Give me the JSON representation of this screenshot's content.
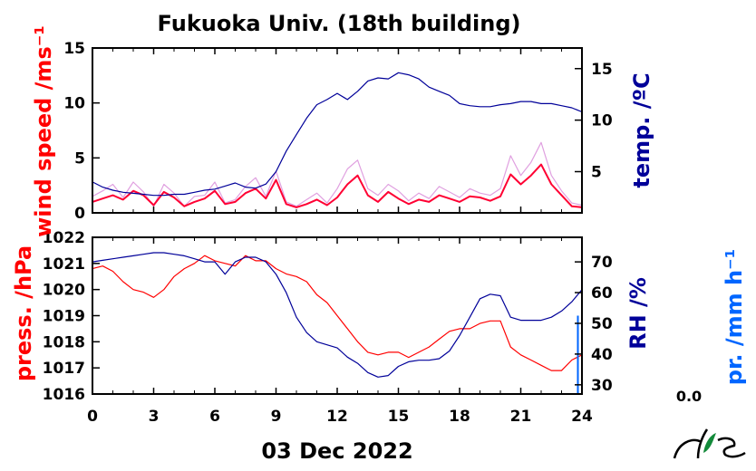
{
  "chart_data": [
    {
      "panel": "upper",
      "type": "line",
      "title": "Fukuoka Univ. (18th building)",
      "xlabel": "03 Dec 2022",
      "xlim": [
        0,
        24
      ],
      "xticks": [
        "0",
        "3",
        "6",
        "9",
        "12",
        "15",
        "18",
        "21",
        "24"
      ],
      "left_axis": {
        "label": "wind speed /ms⁻¹",
        "color": "#ff0000",
        "ylim": [
          0,
          15
        ],
        "ticks": [
          "0",
          "5",
          "10",
          "15"
        ]
      },
      "right_axis": {
        "label": "temp. /ºC",
        "color": "#000099",
        "ylim": [
          1,
          17
        ],
        "ticks": [
          "5",
          "10",
          "15"
        ]
      },
      "series": [
        {
          "axis": "left",
          "style": "thin-raw",
          "color": "#e0a0e0",
          "x": [
            0,
            0.5,
            1,
            1.5,
            2,
            2.5,
            3,
            3.5,
            4,
            4.5,
            5,
            5.5,
            6,
            6.5,
            7,
            7.5,
            8,
            8.5,
            9,
            9.5,
            10,
            10.5,
            11,
            11.5,
            12,
            12.5,
            13,
            13.5,
            14,
            14.5,
            15,
            15.5,
            16,
            16.5,
            17,
            17.5,
            18,
            18.5,
            19,
            19.5,
            20,
            20.5,
            21,
            21.5,
            22,
            22.5,
            23,
            23.5,
            24
          ],
          "values": [
            1.5,
            2.0,
            2.6,
            1.4,
            2.8,
            1.9,
            0.6,
            2.6,
            1.8,
            0.6,
            1.5,
            1.6,
            2.8,
            0.9,
            1.2,
            2.4,
            3.2,
            1.5,
            3.8,
            1.0,
            0.6,
            1.2,
            1.8,
            0.9,
            2.2,
            4.0,
            4.8,
            2.2,
            1.6,
            2.6,
            2.0,
            1.1,
            1.8,
            1.3,
            2.4,
            1.9,
            1.4,
            2.2,
            1.8,
            1.6,
            2.2,
            5.2,
            3.4,
            4.6,
            6.4,
            3.4,
            2.0,
            0.9,
            0.7
          ]
        },
        {
          "axis": "left",
          "style": "smoothed",
          "color": "#ff0033",
          "x": [
            0,
            0.5,
            1,
            1.5,
            2,
            2.5,
            3,
            3.5,
            4,
            4.5,
            5,
            5.5,
            6,
            6.5,
            7,
            7.5,
            8,
            8.5,
            9,
            9.5,
            10,
            10.5,
            11,
            11.5,
            12,
            12.5,
            13,
            13.5,
            14,
            14.5,
            15,
            15.5,
            16,
            16.5,
            17,
            17.5,
            18,
            18.5,
            19,
            19.5,
            20,
            20.5,
            21,
            21.5,
            22,
            22.5,
            23,
            23.5,
            24
          ],
          "values": [
            1.0,
            1.3,
            1.6,
            1.2,
            2.0,
            1.6,
            0.7,
            1.9,
            1.4,
            0.6,
            1.0,
            1.3,
            2.0,
            0.8,
            1.0,
            1.8,
            2.2,
            1.3,
            3.0,
            0.8,
            0.5,
            0.8,
            1.2,
            0.7,
            1.4,
            2.6,
            3.4,
            1.6,
            1.0,
            1.9,
            1.3,
            0.8,
            1.2,
            1.0,
            1.6,
            1.3,
            1.0,
            1.5,
            1.4,
            1.1,
            1.5,
            3.5,
            2.6,
            3.4,
            4.4,
            2.6,
            1.6,
            0.6,
            0.5
          ]
        },
        {
          "axis": "right",
          "style": "line",
          "color": "#000099",
          "x": [
            0,
            0.5,
            1,
            1.5,
            2,
            2.5,
            3,
            3.5,
            4,
            4.5,
            5,
            5.5,
            6,
            6.5,
            7,
            7.5,
            8,
            8.5,
            9,
            9.5,
            10,
            10.5,
            11,
            11.5,
            12,
            12.5,
            13,
            13.5,
            14,
            14.5,
            15,
            15.5,
            16,
            16.5,
            17,
            17.5,
            18,
            18.5,
            19,
            19.5,
            20,
            20.5,
            21,
            21.5,
            22,
            22.5,
            23,
            23.5,
            24
          ],
          "values": [
            4.0,
            3.5,
            3.2,
            3.0,
            2.9,
            2.8,
            2.7,
            2.7,
            2.8,
            2.8,
            3.0,
            3.2,
            3.3,
            3.6,
            3.9,
            3.5,
            3.4,
            3.8,
            5.0,
            7.0,
            8.6,
            10.2,
            11.5,
            12.0,
            12.6,
            12.0,
            12.8,
            13.8,
            14.1,
            14.0,
            14.6,
            14.4,
            14.0,
            13.2,
            12.8,
            12.4,
            11.6,
            11.4,
            11.3,
            11.3,
            11.5,
            11.6,
            11.8,
            11.8,
            11.6,
            11.6,
            11.4,
            11.2,
            10.8
          ]
        }
      ]
    },
    {
      "panel": "lower",
      "type": "line",
      "xlim": [
        0,
        24
      ],
      "xticks": [
        "0",
        "3",
        "6",
        "9",
        "12",
        "15",
        "18",
        "21",
        "24"
      ],
      "left_axis": {
        "label": "press. /hPa",
        "color": "#ff0000",
        "ylim": [
          1016,
          1022
        ],
        "ticks": [
          "1016",
          "1017",
          "1018",
          "1019",
          "1020",
          "1021",
          "1022"
        ]
      },
      "right_axis": {
        "label": "RH /%",
        "color": "#000099",
        "ylim": [
          27,
          78
        ],
        "ticks": [
          "30",
          "40",
          "50",
          "60",
          "70"
        ]
      },
      "series": [
        {
          "axis": "left",
          "style": "line",
          "color": "#ff0000",
          "x": [
            0,
            0.5,
            1,
            1.5,
            2,
            2.5,
            3,
            3.5,
            4,
            4.5,
            5,
            5.5,
            6,
            6.5,
            7,
            7.5,
            8,
            8.5,
            9,
            9.5,
            10,
            10.5,
            11,
            11.5,
            12,
            12.5,
            13,
            13.5,
            14,
            14.5,
            15,
            15.5,
            16,
            16.5,
            17,
            17.5,
            18,
            18.5,
            19,
            19.5,
            20,
            20.5,
            21,
            21.5,
            22,
            22.5,
            23,
            23.5,
            24
          ],
          "values": [
            1020.8,
            1020.9,
            1020.7,
            1020.3,
            1020.0,
            1019.9,
            1019.7,
            1020.0,
            1020.5,
            1020.8,
            1021.0,
            1021.3,
            1021.1,
            1021.0,
            1020.9,
            1021.3,
            1021.1,
            1021.1,
            1020.8,
            1020.6,
            1020.5,
            1020.3,
            1019.8,
            1019.5,
            1019.0,
            1018.5,
            1018.0,
            1017.6,
            1017.5,
            1017.6,
            1017.6,
            1017.4,
            1017.6,
            1017.8,
            1018.1,
            1018.4,
            1018.5,
            1018.5,
            1018.7,
            1018.8,
            1018.8,
            1017.8,
            1017.5,
            1017.3,
            1017.1,
            1016.9,
            1016.9,
            1017.3,
            1017.5
          ]
        },
        {
          "axis": "right",
          "style": "line",
          "color": "#000099",
          "x": [
            0,
            0.5,
            1,
            1.5,
            2,
            2.5,
            3,
            3.5,
            4,
            4.5,
            5,
            5.5,
            6,
            6.5,
            7,
            7.5,
            8,
            8.5,
            9,
            9.5,
            10,
            10.5,
            11,
            11.5,
            12,
            12.5,
            13,
            13.5,
            14,
            14.5,
            15,
            15.5,
            16,
            16.5,
            17,
            17.5,
            18,
            18.5,
            19,
            19.5,
            20,
            20.5,
            21,
            21.5,
            22,
            22.5,
            23,
            23.5,
            24
          ],
          "values": [
            70,
            70.5,
            71,
            71.5,
            72,
            72.5,
            73,
            73,
            72.5,
            72,
            71,
            70,
            70,
            66,
            70,
            71.5,
            71.5,
            70,
            66,
            60,
            52,
            47,
            44,
            43,
            42,
            39,
            37,
            34,
            32.5,
            33,
            36,
            37.5,
            38,
            38,
            38.5,
            41,
            46,
            52,
            58,
            59.5,
            59,
            52,
            51,
            51,
            51,
            52,
            54,
            57,
            61
          ]
        }
      ]
    },
    {
      "panel": "precipitation",
      "type": "bar",
      "axis_label": "pr. /mm h⁻¹",
      "color": "#0066ff",
      "total_label": "0.0",
      "x": [
        23.8
      ],
      "values": [
        0.6
      ]
    }
  ],
  "logo": {
    "name": "NES-logo",
    "text": "NES"
  }
}
